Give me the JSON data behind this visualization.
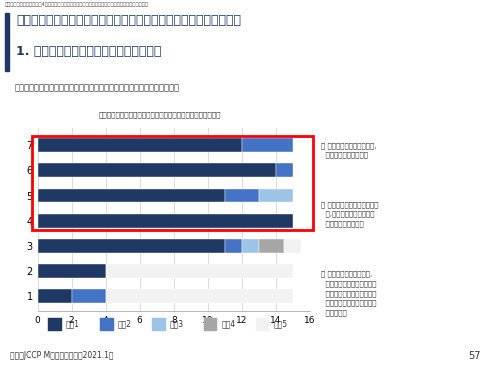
{
  "title_top": "ルワンダ／周辺諸国調査／4．市場・投資環境関連情報／業界情造・主要企業、競合（日本企業以外）",
  "title_main_line1": "ルワンダ基礎調査（ターゲット顧客の思考・行動と競合サービス）",
  "title_main_line2": "1. 病院の選択：重視する要素（キガリ）",
  "subtitle": "医療設備，スタッフのスキルなど安全な出産に関わる項目の重要性が高い",
  "chart_title": "図表５２　病院を選択する際に重視する要素は何か（キガリ）",
  "categories": [
    "1",
    "2",
    "3",
    "4",
    "5",
    "6",
    "7"
  ],
  "series_labels": [
    "系列1",
    "系列2",
    "系列3",
    "系列4",
    "系列5"
  ],
  "series_colors": [
    "#1f3864",
    "#4472c4",
    "#9dc3e6",
    "#a6a6a6",
    "#f2f2f2"
  ],
  "data": {
    "series1": [
      2.0,
      4.0,
      11.0,
      15.0,
      11.0,
      14.0,
      12.0
    ],
    "series2": [
      2.0,
      0.0,
      1.0,
      0.0,
      2.0,
      1.0,
      3.0
    ],
    "series3": [
      0.0,
      0.0,
      1.0,
      0.0,
      2.0,
      0.0,
      0.0
    ],
    "series4": [
      0.0,
      0.0,
      1.5,
      0.0,
      0.0,
      0.0,
      0.0
    ],
    "series5": [
      11.0,
      11.0,
      1.0,
      0.0,
      0.0,
      0.0,
      0.0
    ]
  },
  "xlim": [
    0,
    16
  ],
  "xticks": [
    0,
    2,
    4,
    6,
    8,
    10,
    12,
    14,
    16
  ],
  "highlight_color": "#ff0000",
  "bg_color": "#ffffff",
  "bar_height": 0.55,
  "annotations_right": [
    "・ 分娩室や病室の快適さは,\n  精神的に影響します。",
    "・ 私は保険に加入していたた\n  め,価格は重要な要素では\n  ありませんでした。",
    "・ 想定外に破水したため,\n  （急いで病院に行かなけれ\n  ばならず）病院が近くにあ\n  るということは重要だと思\n  いました。"
  ],
  "source_text": "出所：JCCP M株式会社作成（2021.1）",
  "page_number": "57"
}
